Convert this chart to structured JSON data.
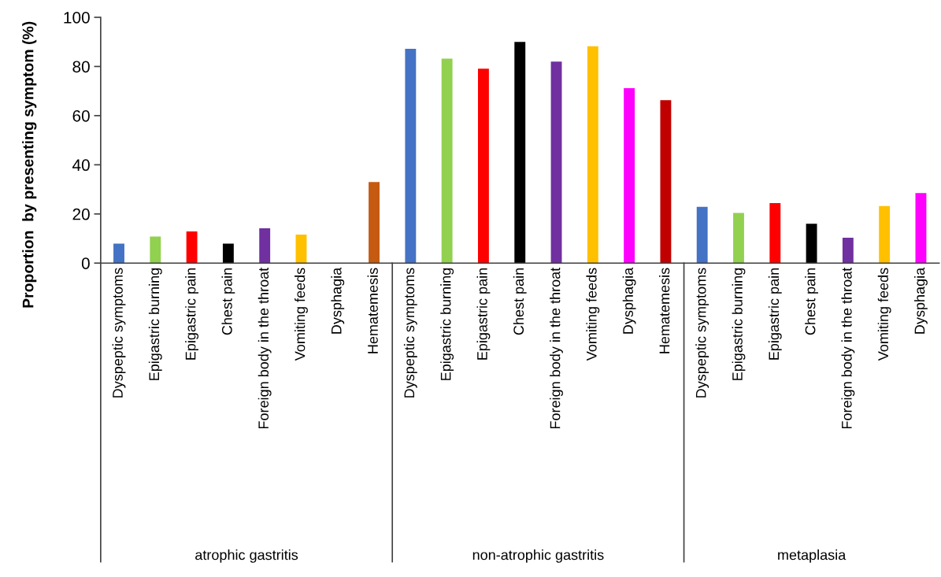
{
  "chart_data": [
    {
      "type": "bar",
      "ylabel": "Proportion  by presenting symptom (%)",
      "xlabel": "atrophic gastritis",
      "categories": [
        "Dyspeptic symptoms",
        "Epigastric burning",
        "Epigastric pain",
        "Chest pain",
        "Foreign body in the throat",
        "Vomiting feeds",
        "Dysphagia",
        "Hematemesis"
      ],
      "values": [
        7.9,
        10.8,
        12.9,
        7.9,
        14.2,
        11.6,
        0,
        33.0
      ],
      "colors": [
        "#4472c4",
        "#92d050",
        "#ff0000",
        "#000000",
        "#7030a0",
        "#ffc000",
        "#ff00ff",
        "#c55a11"
      ],
      "ylim": [
        0,
        100
      ],
      "yticks": [
        0,
        20,
        40,
        60,
        80,
        100
      ],
      "grid": false,
      "legend": false
    },
    {
      "type": "bar",
      "xlabel": "non-atrophic gastritis",
      "categories": [
        "Dyspeptic symptoms",
        "Epigastric burning",
        "Epigastric pain",
        "Chest pain",
        "Foreign body in the throat",
        "Vomiting feeds",
        "Dysphagia",
        "Hematemesis"
      ],
      "values": [
        87.2,
        83.2,
        79.1,
        90.0,
        82.0,
        88.2,
        71.2,
        66.3
      ],
      "colors": [
        "#4472c4",
        "#92d050",
        "#ff0000",
        "#000000",
        "#7030a0",
        "#ffc000",
        "#ff00ff",
        "#c00000"
      ],
      "ylim": [
        0,
        100
      ],
      "yticks": [
        0,
        20,
        40,
        60,
        80,
        100
      ],
      "tick_labels": "x",
      "grid": false,
      "legend": false
    },
    {
      "type": "bar",
      "xlabel": "metaplasia",
      "categories": [
        "Dyspeptic symptoms",
        "Epigastric burning",
        "Epigastric pain",
        "Chest pain",
        "Foreign body in the throat",
        "Vomiting feeds",
        "Dysphagia"
      ],
      "values": [
        22.9,
        20.4,
        24.4,
        16.0,
        10.3,
        23.2,
        28.5
      ],
      "colors": [
        "#4472c4",
        "#92d050",
        "#ff0000",
        "#000000",
        "#7030a0",
        "#ffc000",
        "#ff00ff"
      ],
      "ylim": [
        0,
        100
      ],
      "yticks": [
        0,
        20,
        40,
        60,
        80,
        100
      ],
      "tick_labels": "x",
      "grid": false,
      "legend": false
    }
  ]
}
